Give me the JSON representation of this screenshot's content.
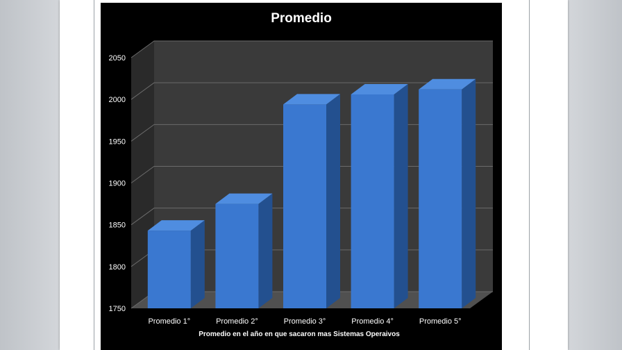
{
  "colors": {
    "bar_front": "#3a78d0",
    "bar_side": "#23508f",
    "bar_top": "#4f8de0",
    "wall": "#3a3a3a",
    "side_wall": "#2a2a2a",
    "floor": "#505050",
    "grid": "#6b6b6b"
  },
  "chart_data": {
    "type": "bar",
    "title": "Promedio",
    "xlabel": "Promedio  en el año en que sacaron mas Sistemas Operaivos",
    "ylabel": "",
    "categories": [
      "Promedio 1°",
      "Promedio 2°",
      "Promedio 3°",
      "Promedio 4°",
      "Promedio 5°"
    ],
    "values": [
      1843,
      1875,
      1994,
      2006,
      2012
    ],
    "ylim": [
      1750,
      2050
    ],
    "yticks": [
      1750,
      1800,
      1850,
      1900,
      1950,
      2000,
      2050
    ],
    "grid": true,
    "legend": "none",
    "style": "3d-column"
  }
}
